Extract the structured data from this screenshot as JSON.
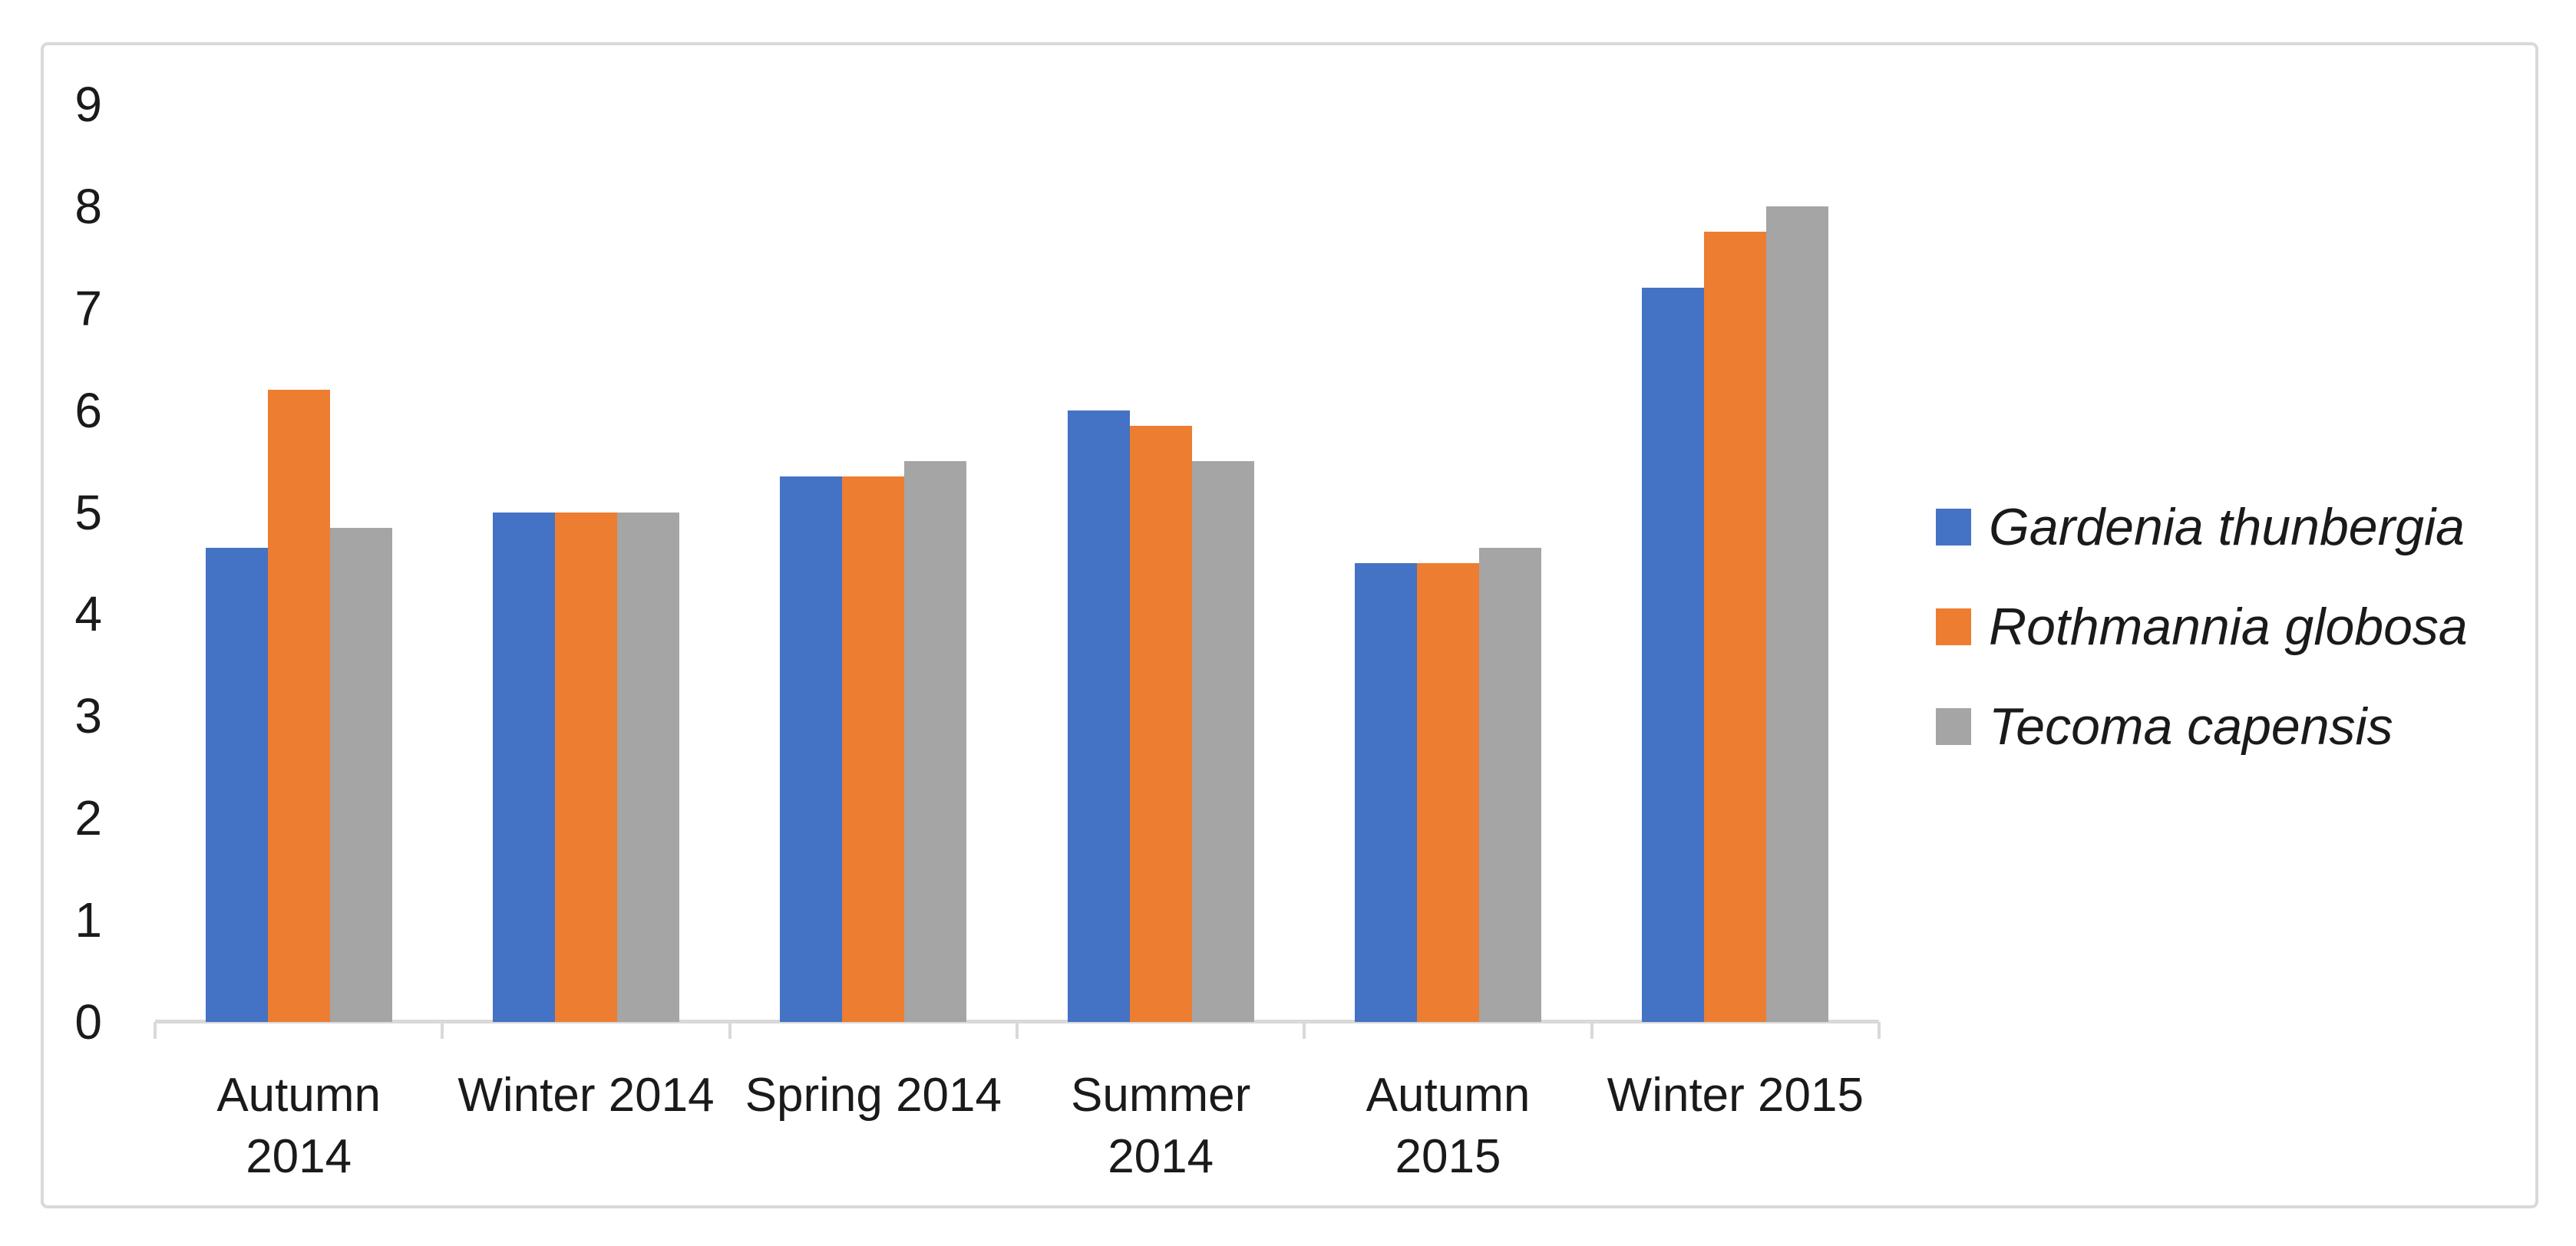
{
  "chart_data": {
    "type": "bar",
    "title": "",
    "xlabel": "",
    "ylabel": "",
    "categories": [
      "Autumn\n2014",
      "Winter 2014",
      "Spring 2014",
      "Summer\n2014",
      "Autumn\n2015",
      "Winter 2015"
    ],
    "series": [
      {
        "name": "Gardenia thunbergia",
        "color": "#4472C4",
        "values": [
          4.65,
          5.0,
          5.35,
          6.0,
          4.5,
          7.2
        ]
      },
      {
        "name": "Rothmannia globosa",
        "color": "#ED7D31",
        "values": [
          6.2,
          5.0,
          5.35,
          5.85,
          4.5,
          7.75
        ]
      },
      {
        "name": "Tecoma capensis",
        "color": "#A5A5A5",
        "values": [
          4.85,
          5.0,
          5.5,
          5.5,
          4.65,
          8.0
        ]
      }
    ],
    "ylim": [
      0,
      9
    ],
    "yticks": [
      "0",
      "1",
      "2",
      "3",
      "4",
      "5",
      "6",
      "7",
      "8",
      "9"
    ],
    "grid": false,
    "legend_position": "right",
    "legend_style": "italic"
  },
  "colors": {
    "axis_line": "#D9D9D9",
    "frame_border": "#D9D9D9",
    "text": "#1A1A1A",
    "background": "#FFFFFF"
  }
}
